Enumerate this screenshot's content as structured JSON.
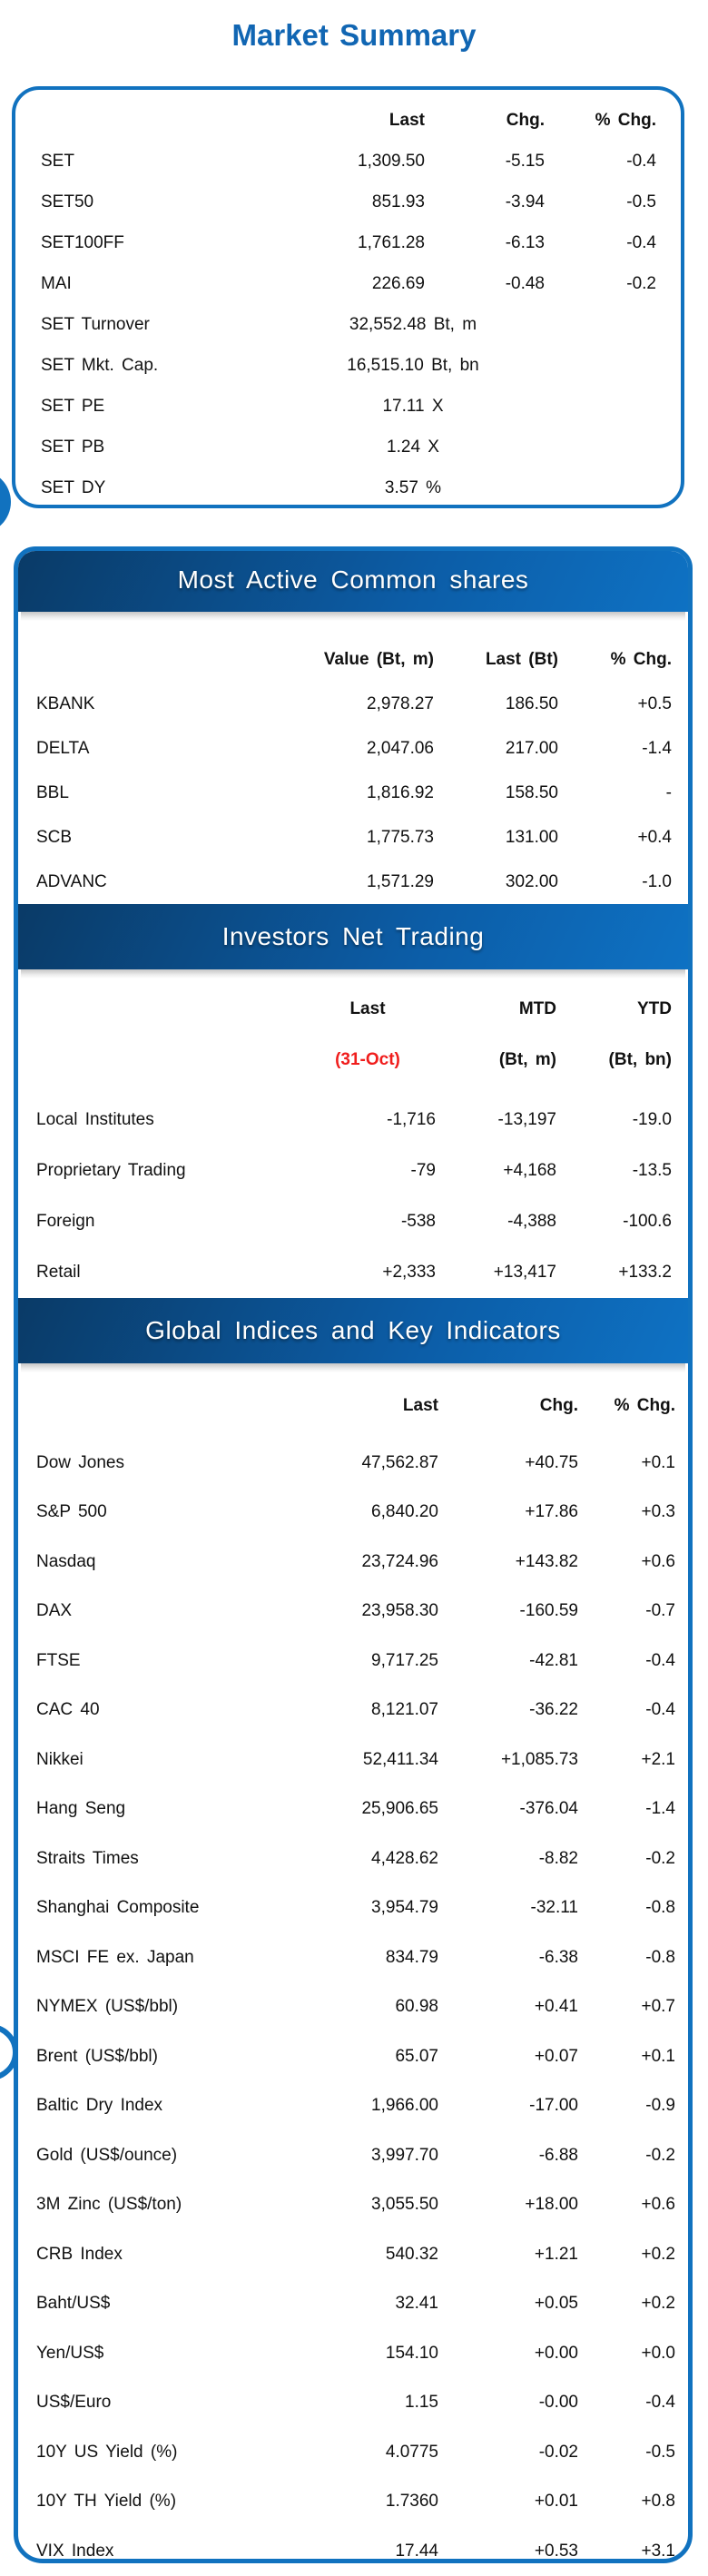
{
  "title": "Market Summary",
  "colors": {
    "accent_blue": "#1172bf",
    "bar_gradient_dark": "#0a3a66",
    "bar_gradient_light": "#0e72c4",
    "highlight_red": "#f01d1c"
  },
  "market_summary": {
    "headers": [
      "Last",
      "Chg.",
      "% Chg."
    ],
    "index_rows": [
      [
        "SET",
        "1,309.50",
        "-5.15",
        "-0.4"
      ],
      [
        "SET50",
        "851.93",
        "-3.94",
        "-0.5"
      ],
      [
        "SET100FF",
        "1,761.28",
        "-6.13",
        "-0.4"
      ],
      [
        "MAI",
        "226.69",
        "-0.48",
        "-0.2"
      ]
    ],
    "stat_rows": [
      [
        "SET Turnover",
        "32,552.48 Bt, m"
      ],
      [
        "SET Mkt. Cap.",
        "16,515.10 Bt, bn"
      ],
      [
        "SET PE",
        "17.11 X"
      ],
      [
        "SET PB",
        "1.24 X"
      ],
      [
        "SET DY",
        "3.57 %"
      ]
    ]
  },
  "most_active": {
    "title": "Most Active Common shares",
    "headers": [
      "Value (Bt, m)",
      "Last (Bt)",
      "% Chg."
    ],
    "rows": [
      [
        "KBANK",
        "2,978.27",
        "186.50",
        "+0.5"
      ],
      [
        "DELTA",
        "2,047.06",
        "217.00",
        "-1.4"
      ],
      [
        "BBL",
        "1,816.92",
        "158.50",
        "-"
      ],
      [
        "SCB",
        "1,775.73",
        "131.00",
        "+0.4"
      ],
      [
        "ADVANC",
        "1,571.29",
        "302.00",
        "-1.0"
      ]
    ]
  },
  "investors_net_trading": {
    "title": "Investors Net Trading",
    "headers": [
      "Last",
      "MTD",
      "YTD"
    ],
    "subheaders": [
      "(31-Oct)",
      "(Bt, m)",
      "(Bt, bn)"
    ],
    "rows": [
      [
        "Local Institutes",
        "-1,716",
        "-13,197",
        "-19.0"
      ],
      [
        "Proprietary Trading",
        "-79",
        "+4,168",
        "-13.5"
      ],
      [
        "Foreign",
        "-538",
        "-4,388",
        "-100.6"
      ],
      [
        "Retail",
        "+2,333",
        "+13,417",
        "+133.2"
      ]
    ]
  },
  "global_indices": {
    "title": "Global Indices and Key Indicators",
    "headers": [
      "Last",
      "Chg.",
      "% Chg."
    ],
    "rows": [
      [
        "Dow Jones",
        "47,562.87",
        "+40.75",
        "+0.1"
      ],
      [
        "S&P 500",
        "6,840.20",
        "+17.86",
        "+0.3"
      ],
      [
        "Nasdaq",
        "23,724.96",
        "+143.82",
        "+0.6"
      ],
      [
        "DAX",
        "23,958.30",
        "-160.59",
        "-0.7"
      ],
      [
        "FTSE",
        "9,717.25",
        "-42.81",
        "-0.4"
      ],
      [
        "CAC 40",
        "8,121.07",
        "-36.22",
        "-0.4"
      ],
      [
        "Nikkei",
        "52,411.34",
        "+1,085.73",
        "+2.1"
      ],
      [
        "Hang Seng",
        "25,906.65",
        "-376.04",
        "-1.4"
      ],
      [
        "Straits Times",
        "4,428.62",
        "-8.82",
        "-0.2"
      ],
      [
        "Shanghai Composite",
        "3,954.79",
        "-32.11",
        "-0.8"
      ],
      [
        "MSCI FE ex. Japan",
        "834.79",
        "-6.38",
        "-0.8"
      ],
      [
        "NYMEX (US$/bbl)",
        "60.98",
        "+0.41",
        "+0.7"
      ],
      [
        "Brent (US$/bbl)",
        "65.07",
        "+0.07",
        "+0.1"
      ],
      [
        "Baltic Dry Index",
        "1,966.00",
        "-17.00",
        "-0.9"
      ],
      [
        "Gold (US$/ounce)",
        "3,997.70",
        "-6.88",
        "-0.2"
      ],
      [
        "3M Zinc (US$/ton)",
        "3,055.50",
        "+18.00",
        "+0.6"
      ],
      [
        "CRB Index",
        "540.32",
        "+1.21",
        "+0.2"
      ],
      [
        "Baht/US$",
        "32.41",
        "+0.05",
        "+0.2"
      ],
      [
        "Yen/US$",
        "154.10",
        "+0.00",
        "+0.0"
      ],
      [
        "US$/Euro",
        "1.15",
        "-0.00",
        "-0.4"
      ],
      [
        "10Y US Yield (%)",
        "4.0775",
        "-0.02",
        "-0.5"
      ],
      [
        "10Y TH Yield (%)",
        "1.7360",
        "+0.01",
        "+0.8"
      ],
      [
        "VIX Index",
        "17.44",
        "+0.53",
        "+3.1"
      ]
    ]
  }
}
